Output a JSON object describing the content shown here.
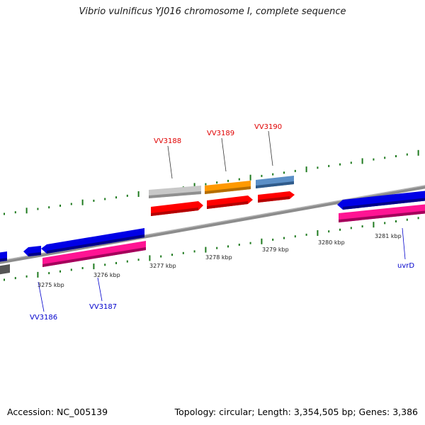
{
  "title": "Vibrio vulnificus YJ016 chromosome I, complete sequence",
  "footer": {
    "accession": "Accession: NC_005139",
    "stats": "Topology: circular; Length: 3,354,505 bp; Genes: 3,386"
  },
  "colors": {
    "backbone": "#8c8c8c",
    "tick": "#1f7a1f",
    "forward_cds": "#ff0000",
    "reverse_cds": "#ff1493",
    "gene_blue": "#0000e6",
    "gene_gray": "#c0c0c0",
    "gene_orange": "#ff9900",
    "gene_steel": "#5b8fc7",
    "label_red": "#e00000",
    "label_blue": "#0000cc"
  },
  "kbp_labels": [
    "3275 kbp",
    "3276 kbp",
    "3277 kbp",
    "3278 kbp",
    "3279 kbp",
    "3280 kbp",
    "3281 kbp"
  ],
  "gene_labels": {
    "upper": [
      "VV3188",
      "VV3189",
      "VV3190"
    ],
    "lower": [
      "VV3186",
      "VV3187",
      "uvrD"
    ]
  }
}
